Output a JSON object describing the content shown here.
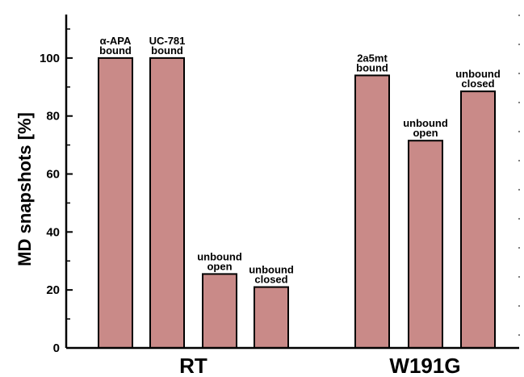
{
  "chart_data": {
    "type": "bar",
    "ylabel": "MD snapshots  [%]",
    "ylim": [
      0,
      115
    ],
    "yticks": [
      0,
      20,
      40,
      60,
      80,
      100
    ],
    "grid": false,
    "groups": [
      {
        "label": "RT",
        "bars": [
          {
            "label": [
              "α-APA",
              "bound"
            ],
            "value": 100
          },
          {
            "label": [
              "UC-781",
              "bound"
            ],
            "value": 100
          },
          {
            "label": [
              "unbound",
              "open"
            ],
            "value": 25.5
          },
          {
            "label": [
              "unbound",
              "closed"
            ],
            "value": 21
          }
        ]
      },
      {
        "label": "W191G",
        "bars": [
          {
            "label": [
              "2a5mt",
              "bound"
            ],
            "value": 94
          },
          {
            "label": [
              "unbound",
              "open"
            ],
            "value": 71.5
          },
          {
            "label": [
              "unbound",
              "closed"
            ],
            "value": 88.5
          }
        ]
      }
    ],
    "colors": {
      "bar_fill": "#c98a88",
      "bar_stroke": "#000000",
      "axis": "#000000"
    }
  }
}
